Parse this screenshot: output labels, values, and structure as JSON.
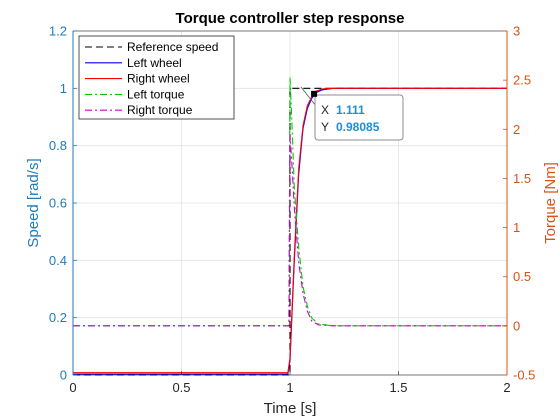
{
  "chart_data": {
    "type": "line",
    "title": "Torque controller step response",
    "xlabel": "Time [s]",
    "ylabel_left": "Speed [rad/s]",
    "ylabel_right": "Torque [Nm]",
    "xlim": [
      0,
      2
    ],
    "ylim_left": [
      0,
      1.2
    ],
    "ylim_right": [
      -0.5,
      3
    ],
    "x_ticks": [
      "0",
      "0.5",
      "1",
      "1.5",
      "2"
    ],
    "y_left_ticks": [
      "0",
      "0.2",
      "0.4",
      "0.6",
      "0.8",
      "1",
      "1.2"
    ],
    "y_right_ticks": [
      "-0.5",
      "0",
      "0.5",
      "1",
      "1.5",
      "2",
      "2.5",
      "3"
    ],
    "grid": true,
    "legend_position": "top-left",
    "series": [
      {
        "name": "Reference speed",
        "axis": "left",
        "style": "dashed",
        "color": "#000000",
        "points": [
          [
            0,
            0
          ],
          [
            1.0,
            0
          ],
          [
            1.0,
            1.0
          ],
          [
            2.0,
            1.0
          ]
        ]
      },
      {
        "name": "Left wheel",
        "axis": "left",
        "style": "solid",
        "color": "#0000ff",
        "points": [
          [
            0,
            0.003
          ],
          [
            0.99,
            0.003
          ],
          [
            1.0,
            0.05
          ],
          [
            1.02,
            0.4
          ],
          [
            1.04,
            0.7
          ],
          [
            1.06,
            0.86
          ],
          [
            1.08,
            0.93
          ],
          [
            1.1,
            0.965
          ],
          [
            1.12,
            0.985
          ],
          [
            1.15,
            0.995
          ],
          [
            1.2,
            1.0
          ],
          [
            2.0,
            1.0
          ]
        ]
      },
      {
        "name": "Right wheel",
        "axis": "left",
        "style": "solid",
        "color": "#ff0000",
        "points": [
          [
            0,
            0.008
          ],
          [
            0.99,
            0.008
          ],
          [
            1.0,
            0.06
          ],
          [
            1.02,
            0.42
          ],
          [
            1.04,
            0.72
          ],
          [
            1.06,
            0.87
          ],
          [
            1.08,
            0.94
          ],
          [
            1.1,
            0.97
          ],
          [
            1.12,
            0.99
          ],
          [
            1.15,
            0.998
          ],
          [
            1.2,
            1.0
          ],
          [
            2.0,
            1.0
          ]
        ]
      },
      {
        "name": "Left torque",
        "axis": "right",
        "style": "dashdot",
        "color": "#00cc00",
        "points": [
          [
            0,
            0.0
          ],
          [
            0.995,
            0.0
          ],
          [
            1.0,
            2.53
          ],
          [
            1.01,
            2.0
          ],
          [
            1.02,
            1.4
          ],
          [
            1.04,
            0.8
          ],
          [
            1.06,
            0.4
          ],
          [
            1.08,
            0.2
          ],
          [
            1.1,
            0.08
          ],
          [
            1.13,
            0.02
          ],
          [
            1.2,
            0.0
          ],
          [
            2.0,
            0.0
          ]
        ]
      },
      {
        "name": "Right torque",
        "axis": "right",
        "style": "dashdot",
        "color": "#cc00cc",
        "points": [
          [
            0,
            0.0
          ],
          [
            0.995,
            0.0
          ],
          [
            1.0,
            1.95
          ],
          [
            1.01,
            1.6
          ],
          [
            1.02,
            1.2
          ],
          [
            1.04,
            0.65
          ],
          [
            1.06,
            0.33
          ],
          [
            1.08,
            0.15
          ],
          [
            1.1,
            0.05
          ],
          [
            1.13,
            0.01
          ],
          [
            1.2,
            0.0
          ],
          [
            2.0,
            0.0
          ]
        ]
      }
    ],
    "datatip": {
      "x_label": "X",
      "x_value": "1.111",
      "y_label": "Y",
      "y_value": "0.98085",
      "x": 1.111,
      "y": 0.98085
    }
  },
  "colors": {
    "left_axis": "#1f7bb8",
    "right_axis": "#d95319",
    "datatip_value": "#1a8fd9"
  }
}
